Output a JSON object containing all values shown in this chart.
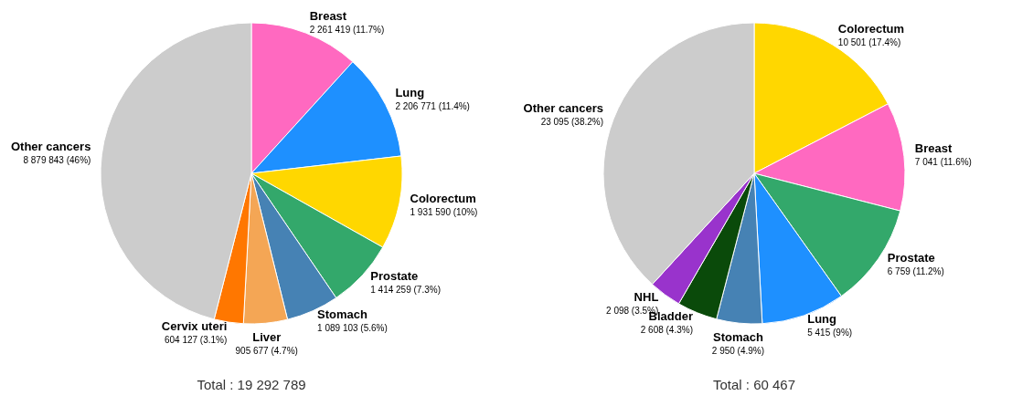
{
  "chart_data": [
    {
      "type": "pie",
      "categories": [
        "Breast",
        "Lung",
        "Colorectum",
        "Prostate",
        "Stomach",
        "Liver",
        "Cervix uteri",
        "Other cancers"
      ],
      "values": [
        2261419,
        2206771,
        1931590,
        1414259,
        1089103,
        905677,
        604127,
        8879843
      ],
      "colors": [
        "#ff69c0",
        "#1e90ff",
        "#ffd700",
        "#33a86b",
        "#4682b4",
        "#f4a655",
        "#ff7700",
        "#cccccc"
      ],
      "value_labels": [
        "2 261 419 (11.7%)",
        "2 206 771 (11.4%)",
        "1 931 590 (10%)",
        "1 414 259 (7.3%)",
        "1 089 103 (5.6%)",
        "905 677 (4.7%)",
        "604 127 (3.1%)",
        "8 879 843 (46%)"
      ],
      "annotations": [
        "Total : 19 292 789"
      ]
    },
    {
      "type": "pie",
      "categories": [
        "Colorectum",
        "Breast",
        "Prostate",
        "Lung",
        "Stomach",
        "Bladder",
        "NHL",
        "Other cancers"
      ],
      "values": [
        10501,
        7041,
        6759,
        5415,
        2950,
        2608,
        2098,
        23095
      ],
      "colors": [
        "#ffd700",
        "#ff69c0",
        "#33a86b",
        "#1e90ff",
        "#4682b4",
        "#0a4a0a",
        "#9933cc",
        "#cccccc"
      ],
      "value_labels": [
        "10 501 (17.4%)",
        "7 041 (11.6%)",
        "6 759 (11.2%)",
        "5 415 (9%)",
        "2 950 (4.9%)",
        "2 608 (4.3%)",
        "2 098 (3.5%)",
        "23 095 (38.2%)"
      ],
      "annotations": [
        "Total : 60 467"
      ]
    }
  ]
}
